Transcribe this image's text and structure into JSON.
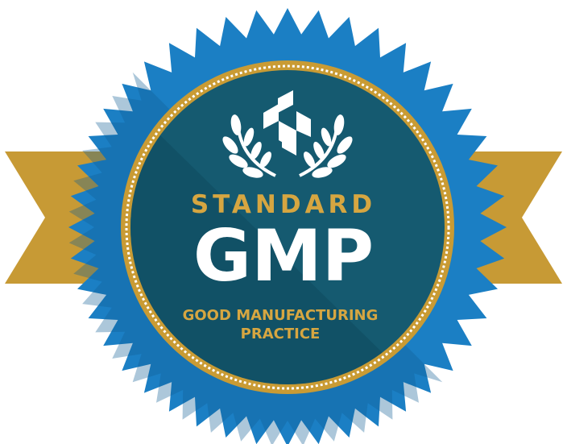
{
  "badge": {
    "kicker": "STANDARD",
    "title": "GMP",
    "subtitle_line1": "GOOD MANUFACTURING",
    "subtitle_line2": "PRACTICE"
  },
  "icons": {
    "emblem": "cube-logo-icon",
    "wreath": "laurel-wreath-icon"
  },
  "colors": {
    "ribbon_gold": "#C79A35",
    "ribbon_gold_dark": "#9E7526",
    "seal_blue": "#1B7FC4",
    "seal_blue_dark": "#115E96",
    "disc_teal": "#155A70",
    "disc_teal_dark": "#0F4A5E",
    "gold_ring": "#C99B34",
    "text_gold": "#D6A641",
    "text_white": "#FFFFFF"
  }
}
